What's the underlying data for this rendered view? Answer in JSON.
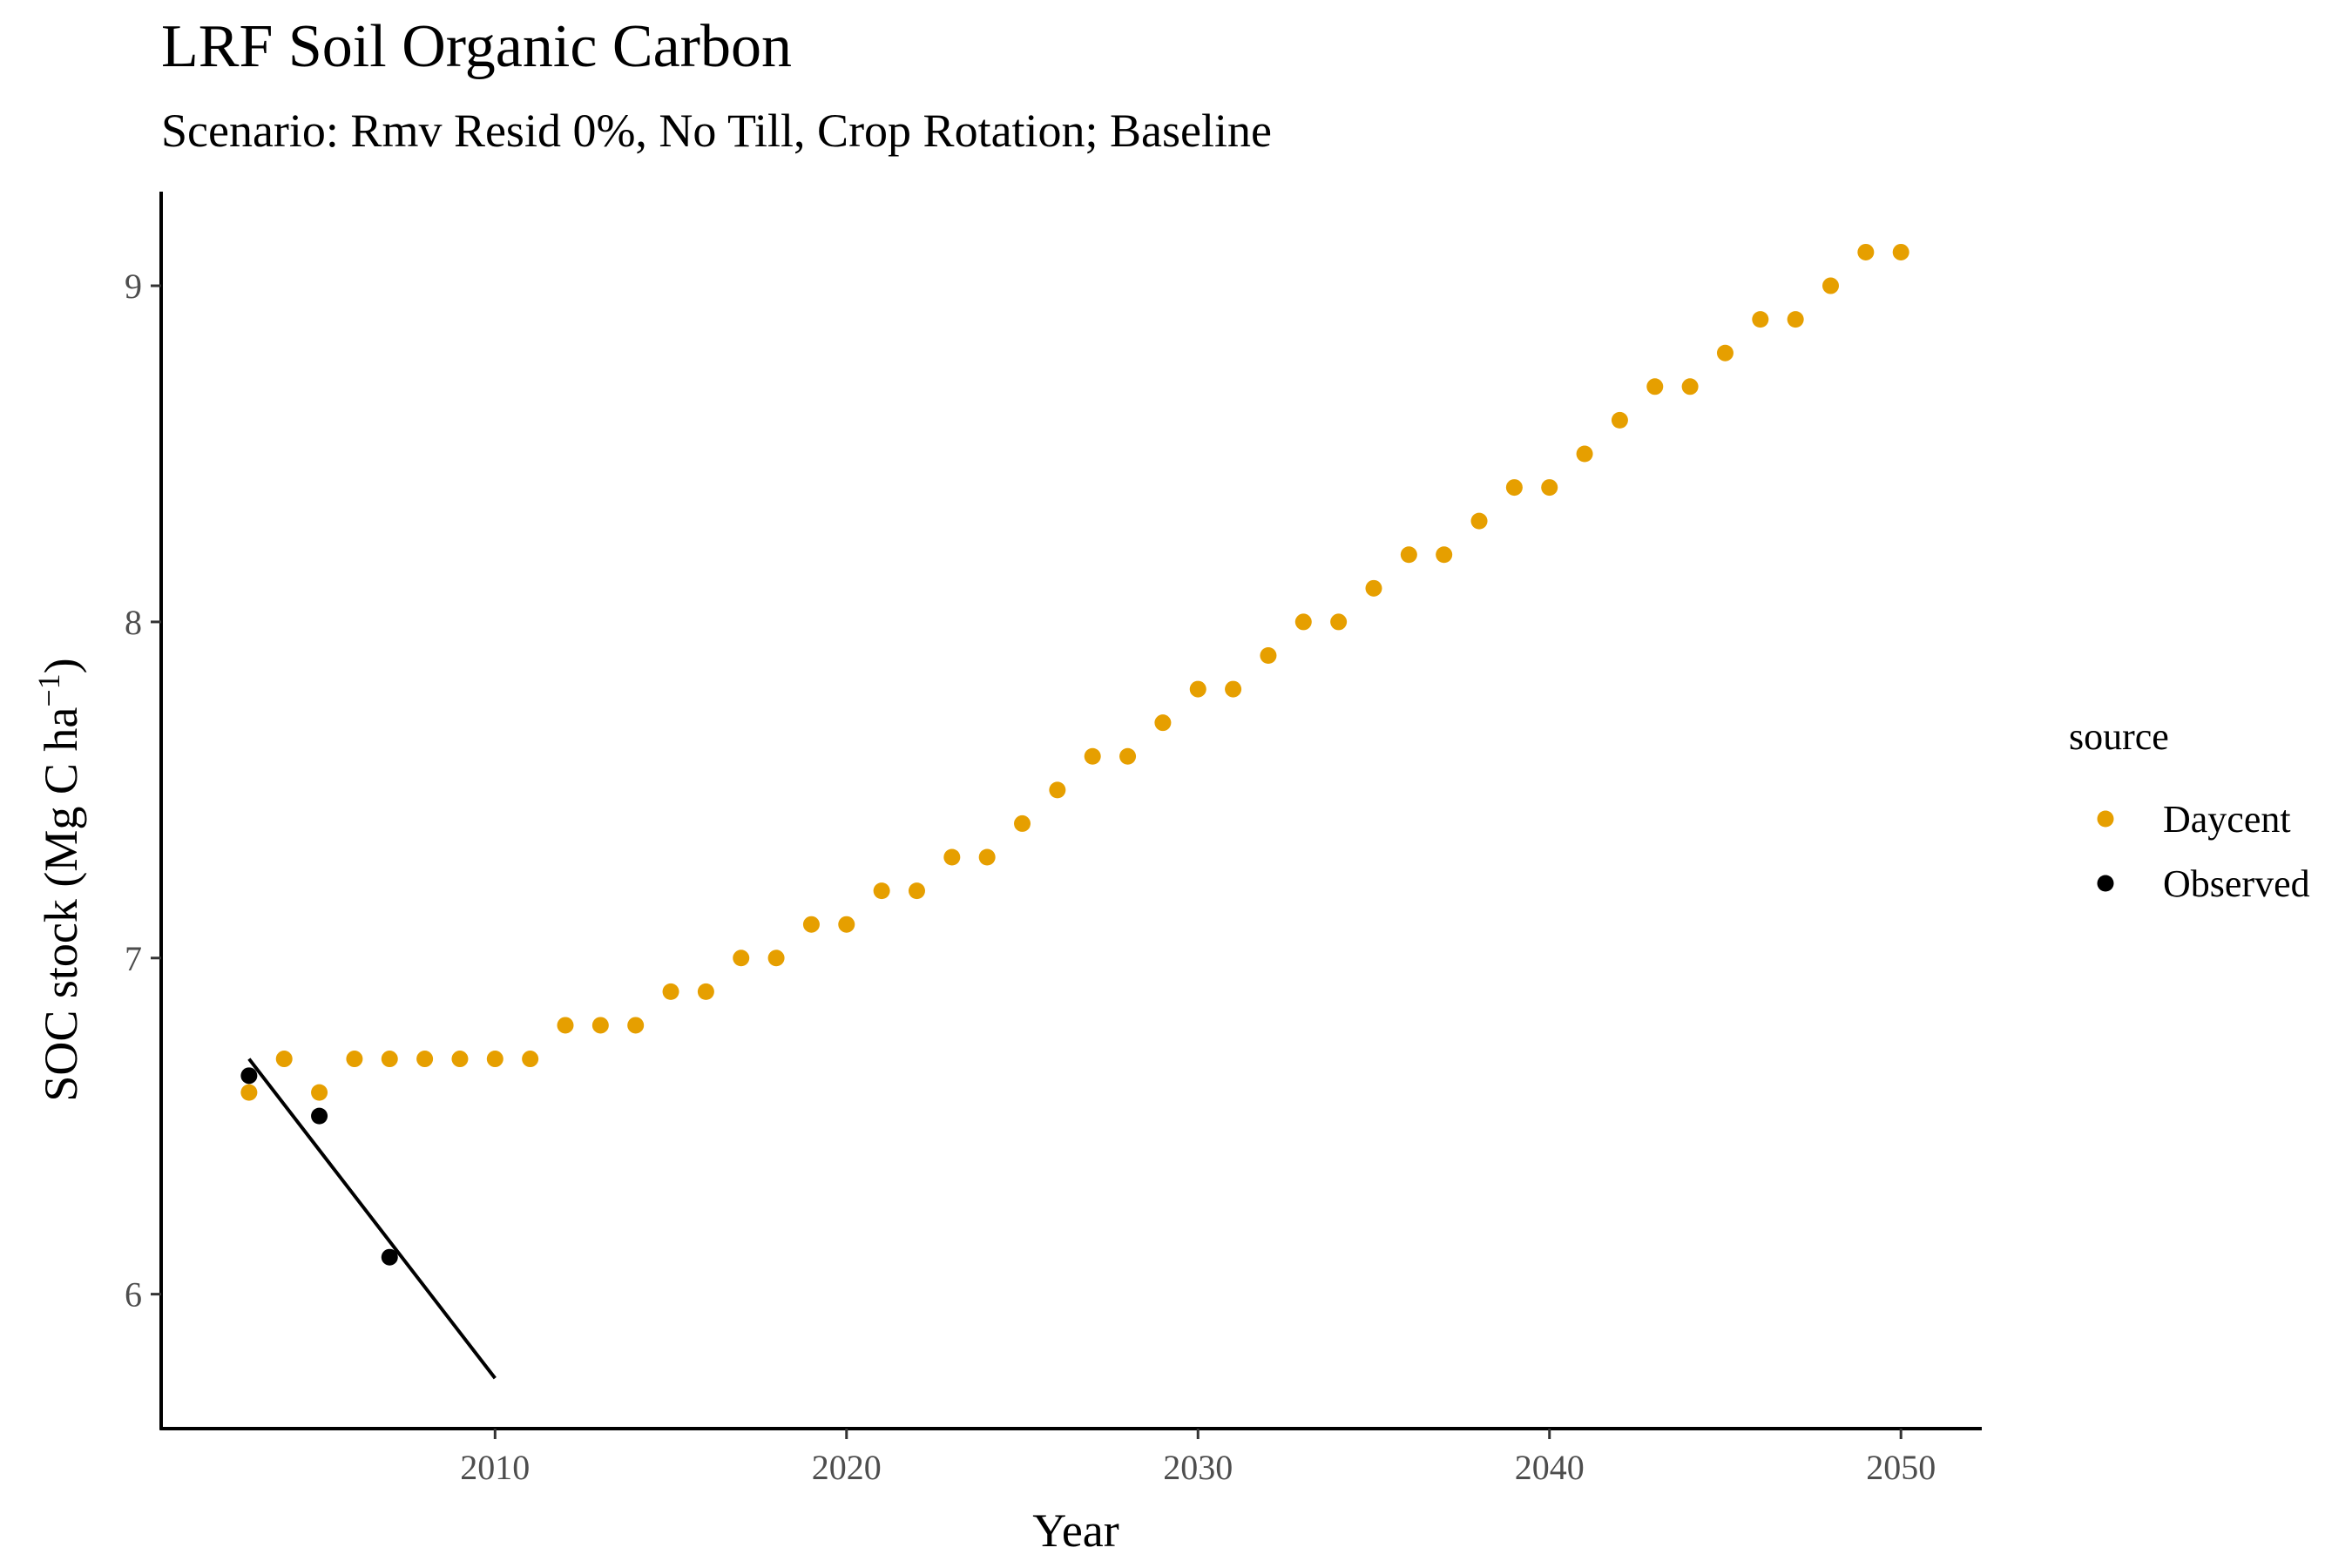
{
  "chart_data": {
    "type": "scatter",
    "title": "LRF Soil Organic Carbon",
    "subtitle": "Scenario: Rmv Resid 0%, No Till, Crop Rotation; Baseline",
    "xlabel": "Year",
    "ylabel": {
      "base": "SOC stock (Mg C ha",
      "sup": "−1",
      "close": ")"
    },
    "xlim": [
      2000.5,
      2052.3
    ],
    "ylim": [
      5.6,
      9.28
    ],
    "x_ticks": [
      2010,
      2020,
      2030,
      2040,
      2050
    ],
    "x_tick_labels": [
      "2010",
      "2020",
      "2030",
      "2040",
      "2050"
    ],
    "y_ticks": [
      6,
      7,
      8,
      9
    ],
    "y_tick_labels": [
      "6",
      "7",
      "8",
      "9"
    ],
    "grid": false,
    "legend": {
      "title": "source",
      "position": "right",
      "entries": [
        {
          "label": "Daycent",
          "color": "#E69F00"
        },
        {
          "label": "Observed",
          "color": "#000000"
        }
      ]
    },
    "series": [
      {
        "name": "Daycent",
        "color": "#E69F00",
        "x": [
          2003,
          2004,
          2005,
          2006,
          2007,
          2008,
          2009,
          2010,
          2011,
          2012,
          2013,
          2014,
          2015,
          2016,
          2017,
          2018,
          2019,
          2020,
          2021,
          2022,
          2023,
          2024,
          2025,
          2026,
          2027,
          2028,
          2029,
          2030,
          2031,
          2032,
          2033,
          2034,
          2035,
          2036,
          2037,
          2038,
          2039,
          2040,
          2041,
          2042,
          2043,
          2044,
          2045,
          2046,
          2047,
          2048,
          2049,
          2050
        ],
        "y": [
          6.6,
          6.7,
          6.6,
          6.7,
          6.7,
          6.7,
          6.7,
          6.7,
          6.7,
          6.8,
          6.8,
          6.8,
          6.9,
          6.9,
          7.0,
          7.0,
          7.1,
          7.1,
          7.2,
          7.2,
          7.3,
          7.3,
          7.4,
          7.5,
          7.6,
          7.6,
          7.7,
          7.8,
          7.8,
          7.9,
          8.0,
          8.0,
          8.1,
          8.2,
          8.2,
          8.3,
          8.4,
          8.4,
          8.5,
          8.6,
          8.7,
          8.7,
          8.8,
          8.9,
          8.9,
          9.0,
          9.1,
          9.1
        ]
      },
      {
        "name": "Observed",
        "color": "#000000",
        "x": [
          2003,
          2005,
          2007
        ],
        "y": [
          6.65,
          6.53,
          6.11
        ]
      }
    ],
    "trend_line": {
      "color": "#000000",
      "x": [
        2003,
        2010
      ],
      "y": [
        6.7,
        5.75
      ]
    }
  }
}
